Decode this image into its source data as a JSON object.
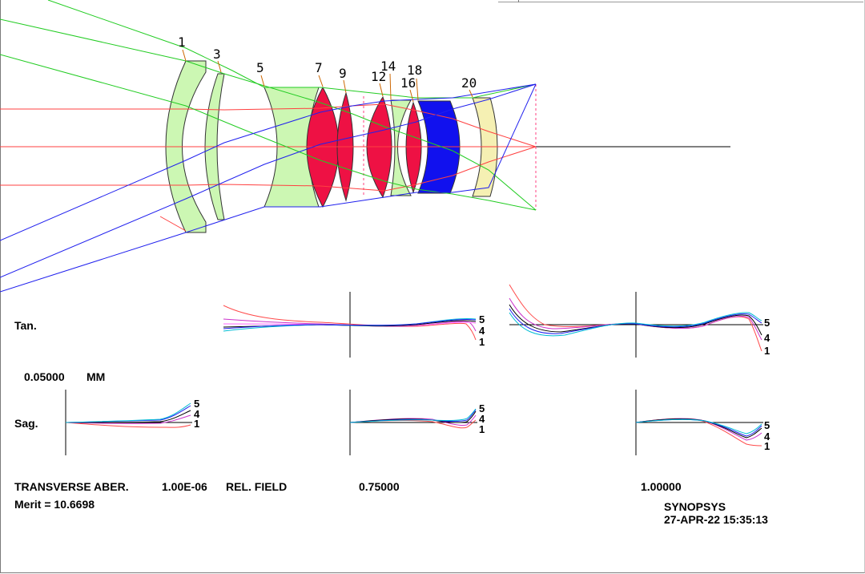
{
  "surface_labels": [
    "1",
    "3",
    "5",
    "7",
    "9",
    "12",
    "14",
    "16",
    "18",
    "20"
  ],
  "plot": {
    "tan_label": "Tan.",
    "sag_label": "Sag.",
    "scale_value": "0.05000",
    "scale_unit": "MM",
    "wavelength_labels": [
      "5",
      "4",
      "1"
    ]
  },
  "footer": {
    "title": "TRANSVERSE ABER.",
    "wave_value": "1.00E-06",
    "field_caption": "REL. FIELD",
    "field_mid": "0.75000",
    "field_full": "1.00000",
    "merit": "Merit = 10.6698",
    "brand": "SYNOPSYS",
    "timestamp": "27-APR-22  15:35:13"
  },
  "colors": {
    "ray_axial": "#ff4040",
    "ray_mid": "#22cc22",
    "ray_full": "#2020ee",
    "glass_light": "#ccf7b3",
    "glass_red": "#ee1144",
    "glass_blue": "#1111ee",
    "glass_yellow": "#f5f0b3"
  }
}
